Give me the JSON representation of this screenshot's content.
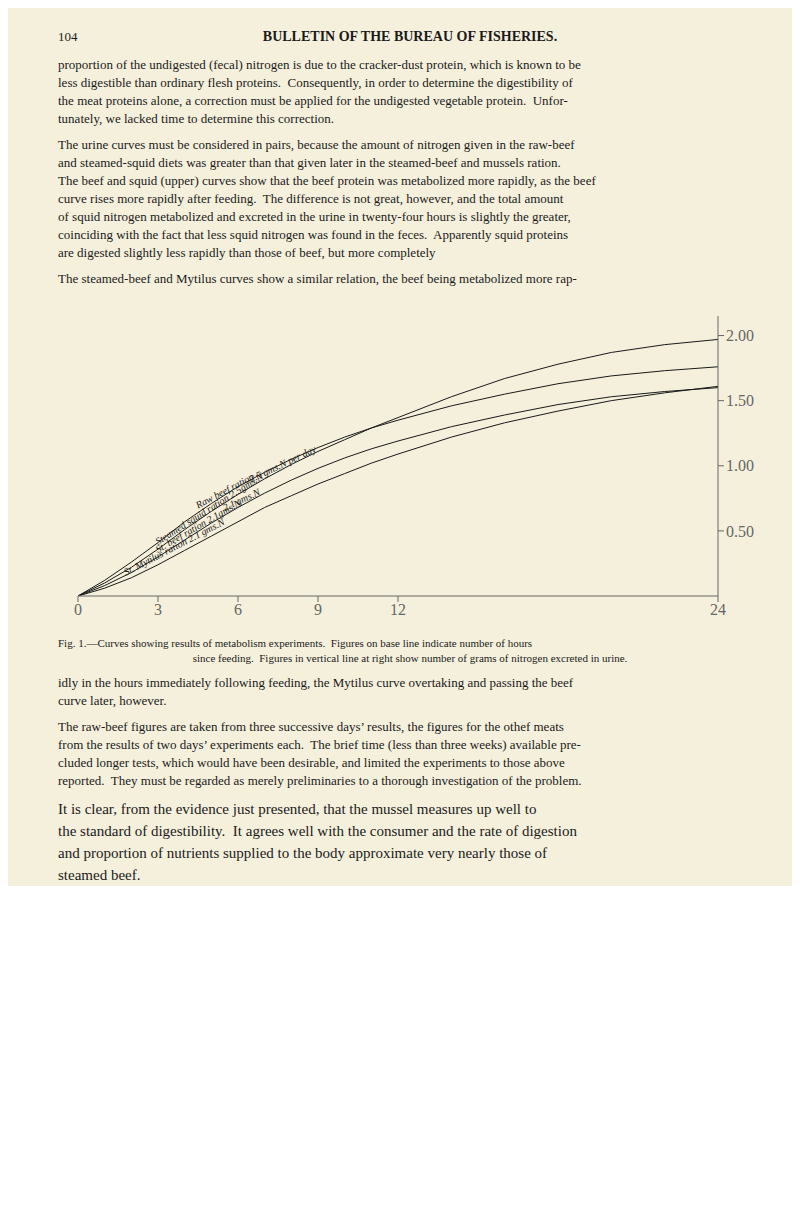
{
  "page": {
    "page_number": "104",
    "header": "BULLETIN OF THE BUREAU OF FISHERIES.",
    "paragraphs_before": [
      [
        "proportion of the undigested (fecal) nitrogen is due to the cracker-dust protein, which is known to be",
        "less digestible than ordinary flesh proteins.  Consequently, in order to determine the digestibility of",
        "the meat proteins alone, a correction must be applied for the undigested vegetable protein.  Unfor-",
        "tunately, we lacked time to determine this correction."
      ],
      [
        "The urine curves must be considered in pairs, because the amount of nitrogen given in the raw-beef",
        "and steamed-squid diets was greater than that given later in the steamed-beef and mussels ration.",
        "The beef and squid (upper) curves show that the beef protein was metabolized more rapidly, as the beef",
        "curve rises more rapidly after feeding.  The difference is not great, however, and the total amount",
        "of squid nitrogen metabolized and excreted in the urine in twenty-four hours is slightly the greater,",
        "coinciding with the fact that less squid nitrogen was found in the feces.  Apparently squid proteins",
        "are digested slightly less rapidly than those of beef, but more completely"
      ],
      [
        "The steamed-beef and Mytilus curves show a similar relation, the beef being metabolized more rap-"
      ]
    ],
    "caption": [
      "Fig. 1.—Curves showing results of metabolism experiments.  Figures on base line indicate number of hours",
      "since feeding.  Figures in vertical line at right show number of grams of nitrogen excreted in urine."
    ],
    "paragraphs_after": [
      [
        "idly in the hours immediately following feeding, the Mytilus curve overtaking and passing the beef",
        "curve later, however."
      ],
      [
        "The raw-beef figures are taken from three successive days’ results, the figures for the othef meats",
        "from the results of two days’ experiments each.  The brief time (less than three weeks) available pre-",
        "cluded longer tests, which would have been desirable, and limited the experiments to those above",
        "reported.  They must be regarded as merely preliminaries to a thorough investigation of the problem."
      ],
      [
        "It is clear, from the evidence just presented, that the mussel measures up well to",
        "the standard of digestibility.  It agrees well with the consumer and the rate of digestion",
        "and proportion of nutrients supplied to the body approximate very nearly those of",
        "steamed beef."
      ]
    ]
  },
  "chart_data": {
    "type": "line",
    "x": [
      0,
      1,
      2,
      3,
      4,
      5,
      6,
      7,
      8,
      9,
      10,
      11,
      12,
      14,
      16,
      18,
      20,
      22,
      24
    ],
    "series": [
      {
        "name": "Steamed squid ration 2.5gms.N",
        "color": "#1a1a1a",
        "values": [
          0,
          0.1,
          0.22,
          0.36,
          0.51,
          0.65,
          0.78,
          0.9,
          1.01,
          1.11,
          1.2,
          1.29,
          1.37,
          1.53,
          1.67,
          1.78,
          1.87,
          1.93,
          1.97
        ]
      },
      {
        "name": "Raw beef  ration",
        "color": "#1a1a1a",
        "values": [
          0,
          0.12,
          0.26,
          0.41,
          0.57,
          0.71,
          0.84,
          0.95,
          1.05,
          1.14,
          1.22,
          1.29,
          1.35,
          1.46,
          1.55,
          1.63,
          1.69,
          1.73,
          1.76
        ]
      },
      {
        "name": "St. beef ration  2.1gms.N",
        "color": "#1a1a1a",
        "values": [
          0,
          0.08,
          0.18,
          0.3,
          0.43,
          0.56,
          0.68,
          0.79,
          0.89,
          0.98,
          1.06,
          1.13,
          1.19,
          1.3,
          1.39,
          1.47,
          1.53,
          1.57,
          1.6
        ]
      },
      {
        "name": "St. Mytilus ration  2.1 gms.N",
        "color": "#1a1a1a",
        "values": [
          0,
          0.06,
          0.14,
          0.24,
          0.35,
          0.46,
          0.57,
          0.68,
          0.77,
          0.86,
          0.94,
          1.02,
          1.09,
          1.22,
          1.33,
          1.42,
          1.5,
          1.56,
          1.61
        ]
      }
    ],
    "xlim": [
      0,
      24
    ],
    "xticks": [
      0,
      3,
      6,
      9,
      12,
      24
    ],
    "ylim": [
      0,
      2.15
    ],
    "yticks": [
      {
        "value": 0.5,
        "label": "0.50"
      },
      {
        "value": 1.0,
        "label": "1.00"
      },
      {
        "value": 1.5,
        "label": "1.50"
      },
      {
        "value": 2.0,
        "label": "2.00"
      }
    ],
    "grid": false,
    "annotations": [
      {
        "series": "Steamed squid ration 2.5gms.N",
        "x": 3.0
      },
      {
        "series": "Steamed squid ration 2.5gms.N",
        "x": 6.5,
        "text": "2.5 gms.N per day"
      },
      {
        "series": "Raw beef  ration",
        "x": 4.5
      },
      {
        "series": "St. beef ration  2.1gms.N",
        "x": 3.0
      },
      {
        "series": "St. beef ration  2.1gms.N",
        "x": 5.5,
        "text": "2.1 gms.N"
      },
      {
        "series": "St. Mytilus ration  2.1 gms.N",
        "x": 1.8
      }
    ]
  }
}
